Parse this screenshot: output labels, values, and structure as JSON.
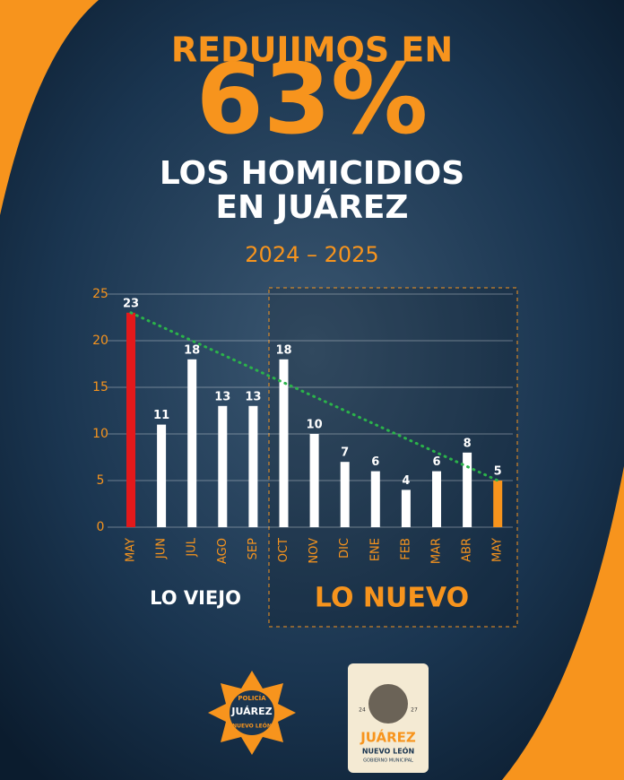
{
  "chart_data": {
    "type": "bar",
    "title_lines": [
      "REDUJIMOS EN",
      "63%",
      "LOS HOMICIDIOS",
      "EN JUÁREZ"
    ],
    "subtitle": "2024 – 2025",
    "categories": [
      "MAY",
      "JUN",
      "JUL",
      "AGO",
      "SEP",
      "OCT",
      "NOV",
      "DIC",
      "ENE",
      "FEB",
      "MAR",
      "ABR",
      "MAY"
    ],
    "values": [
      23,
      11,
      18,
      13,
      13,
      18,
      10,
      7,
      6,
      4,
      6,
      8,
      5
    ],
    "colors": [
      "#e3191b",
      "#ffffff",
      "#ffffff",
      "#ffffff",
      "#ffffff",
      "#ffffff",
      "#ffffff",
      "#ffffff",
      "#ffffff",
      "#ffffff",
      "#ffffff",
      "#ffffff",
      "#f7941d"
    ],
    "ylim": [
      0,
      25
    ],
    "yticks": [
      0,
      5,
      10,
      15,
      20,
      25
    ],
    "grid": true,
    "annotations": [
      "LO VIEJO",
      "LO NUEVO"
    ]
  },
  "logos": {
    "police": [
      "POLICÍA",
      "JUÁREZ",
      "NUEVO LEÓN"
    ],
    "municipal": [
      "JUÁREZ",
      "NUEVO LEÓN",
      "GOBIERNO MUNICIPAL",
      "24",
      "27"
    ]
  }
}
